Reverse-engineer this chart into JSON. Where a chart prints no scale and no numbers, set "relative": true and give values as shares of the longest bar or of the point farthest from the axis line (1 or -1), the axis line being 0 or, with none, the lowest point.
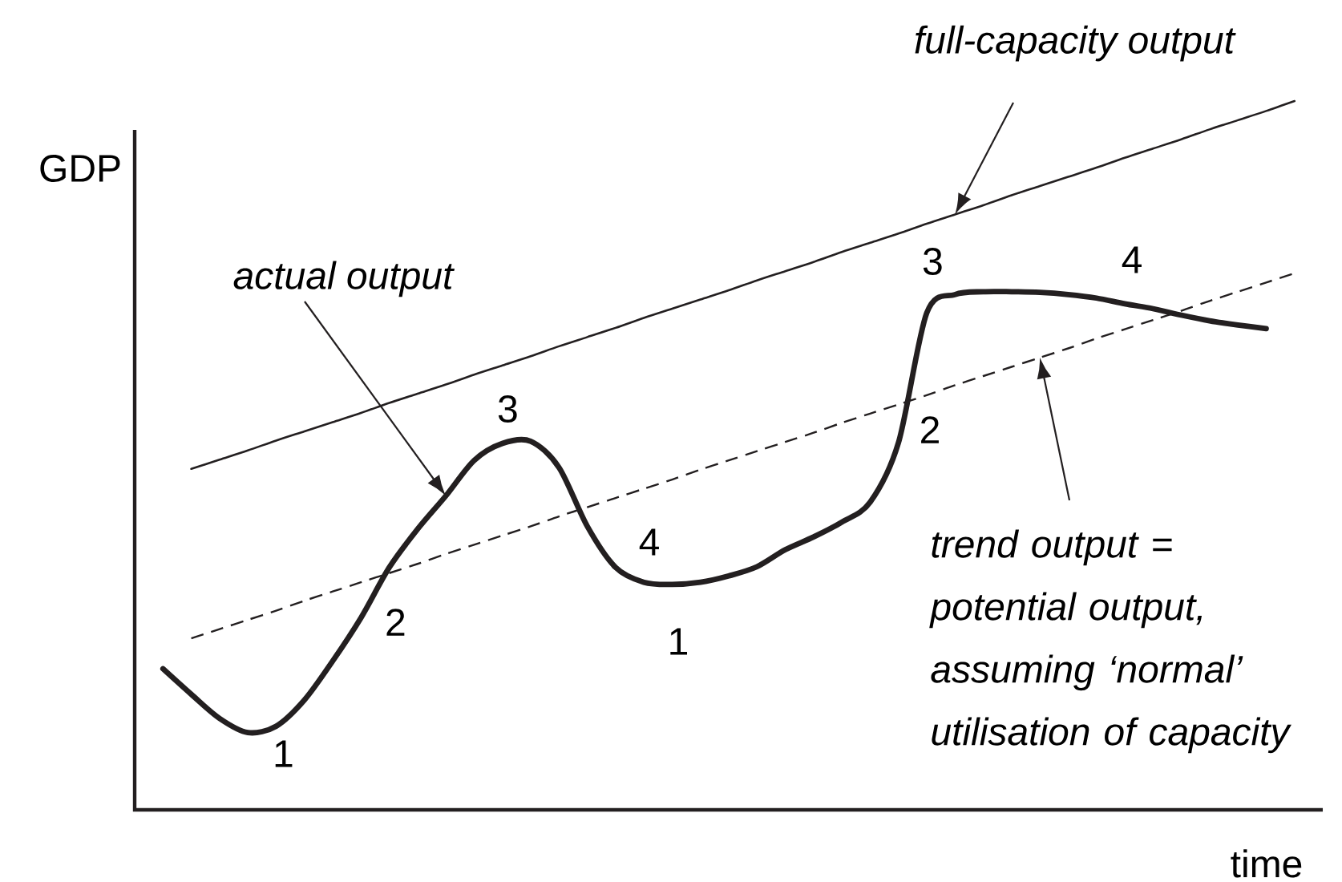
{
  "chart_data": {
    "type": "line",
    "xlabel": "time",
    "ylabel": "GDP",
    "relative": true,
    "categories": [
      null,
      null,
      null,
      null,
      null,
      null,
      null,
      null,
      null,
      null,
      null,
      null,
      null,
      null,
      null,
      null,
      null,
      null,
      null,
      null,
      null,
      null,
      null,
      null,
      null,
      null,
      null,
      null,
      null,
      null,
      null,
      null,
      null,
      null,
      null,
      null,
      null,
      null,
      null,
      null,
      null
    ],
    "series": [
      {
        "color": "#231f20",
        "line_style": "solid",
        "values": [
          null,
          0.481,
          0.494,
          0.507,
          0.521,
          0.534,
          0.547,
          0.56,
          0.574,
          0.587,
          0.6,
          0.614,
          0.627,
          0.64,
          0.654,
          0.667,
          0.68,
          0.694,
          0.707,
          0.72,
          0.733,
          0.747,
          0.76,
          0.773,
          0.787,
          0.8,
          0.813,
          0.827,
          0.84,
          0.853,
          0.867,
          0.88,
          0.893,
          0.906,
          0.92,
          0.933,
          0.946,
          0.96,
          0.973,
          0.986,
          1.0
        ]
      },
      {
        "color": "#231f20",
        "line_style": "solid",
        "values": [
          0.199,
          0.163,
          0.129,
          0.109,
          0.118,
          0.155,
          0.21,
          0.271,
          0.342,
          0.396,
          0.443,
          0.493,
          0.517,
          0.52,
          0.483,
          0.4,
          0.342,
          0.321,
          0.318,
          0.321,
          0.33,
          0.343,
          0.367,
          0.385,
          0.406,
          0.434,
          0.518,
          0.701,
          0.727,
          0.731,
          0.731,
          0.73,
          0.727,
          0.722,
          0.714,
          0.707,
          0.698,
          0.69,
          0.684,
          0.679,
          null
        ]
      },
      {
        "color": "#231f20",
        "line_style": "dashed",
        "values": [
          null,
          0.242,
          0.255,
          0.268,
          0.281,
          0.295,
          0.308,
          0.321,
          0.334,
          0.347,
          0.361,
          0.374,
          0.387,
          0.4,
          0.414,
          0.427,
          0.44,
          0.453,
          0.466,
          0.48,
          0.493,
          0.506,
          0.519,
          0.532,
          0.546,
          0.559,
          0.572,
          0.585,
          0.599,
          0.612,
          0.625,
          0.638,
          0.651,
          0.665,
          0.678,
          0.691,
          0.704,
          0.718,
          0.731,
          0.744,
          0.757
        ]
      }
    ],
    "annotations": [
      "full-capacity output",
      "actual output",
      "trend output = potential output, assuming ‘normal’ utilisation of capacity",
      "1",
      "2",
      "3",
      "4",
      "1",
      "2",
      "3",
      "4"
    ]
  }
}
